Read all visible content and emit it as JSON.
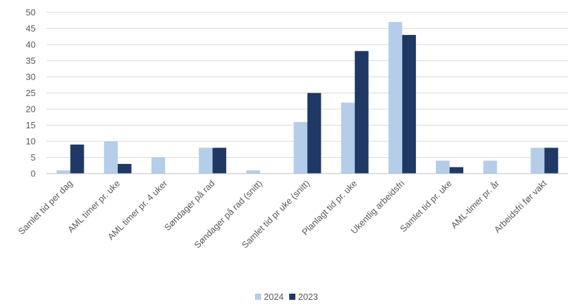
{
  "chart_data": {
    "type": "bar",
    "title": "",
    "xlabel": "",
    "ylabel": "",
    "ylim": [
      0,
      50
    ],
    "yticks": [
      0,
      5,
      10,
      15,
      20,
      25,
      30,
      35,
      40,
      45,
      50
    ],
    "grid": true,
    "legend_position": "bottom",
    "categories": [
      "Samlet tid per dag",
      "AML timer pr. uke",
      "AML timer pr. 4 uker",
      "Søndager på rad",
      "Søndager på rad (snitt)",
      "Samlet tid pr uke (snitt)",
      "Planlagt tid pr. uke",
      "Ukentlig arbeidsfri",
      "Samlet tid pr. uke",
      "AML-timer pr. år",
      "Arbeidsfri før vakt"
    ],
    "series": [
      {
        "name": "2024",
        "color": "#b4cde8",
        "values": [
          1,
          10,
          5,
          8,
          1,
          16,
          22,
          47,
          4,
          4,
          8
        ]
      },
      {
        "name": "2023",
        "color": "#1f3864",
        "values": [
          9,
          3,
          0,
          8,
          0,
          25,
          38,
          43,
          2,
          0,
          8
        ]
      }
    ]
  }
}
